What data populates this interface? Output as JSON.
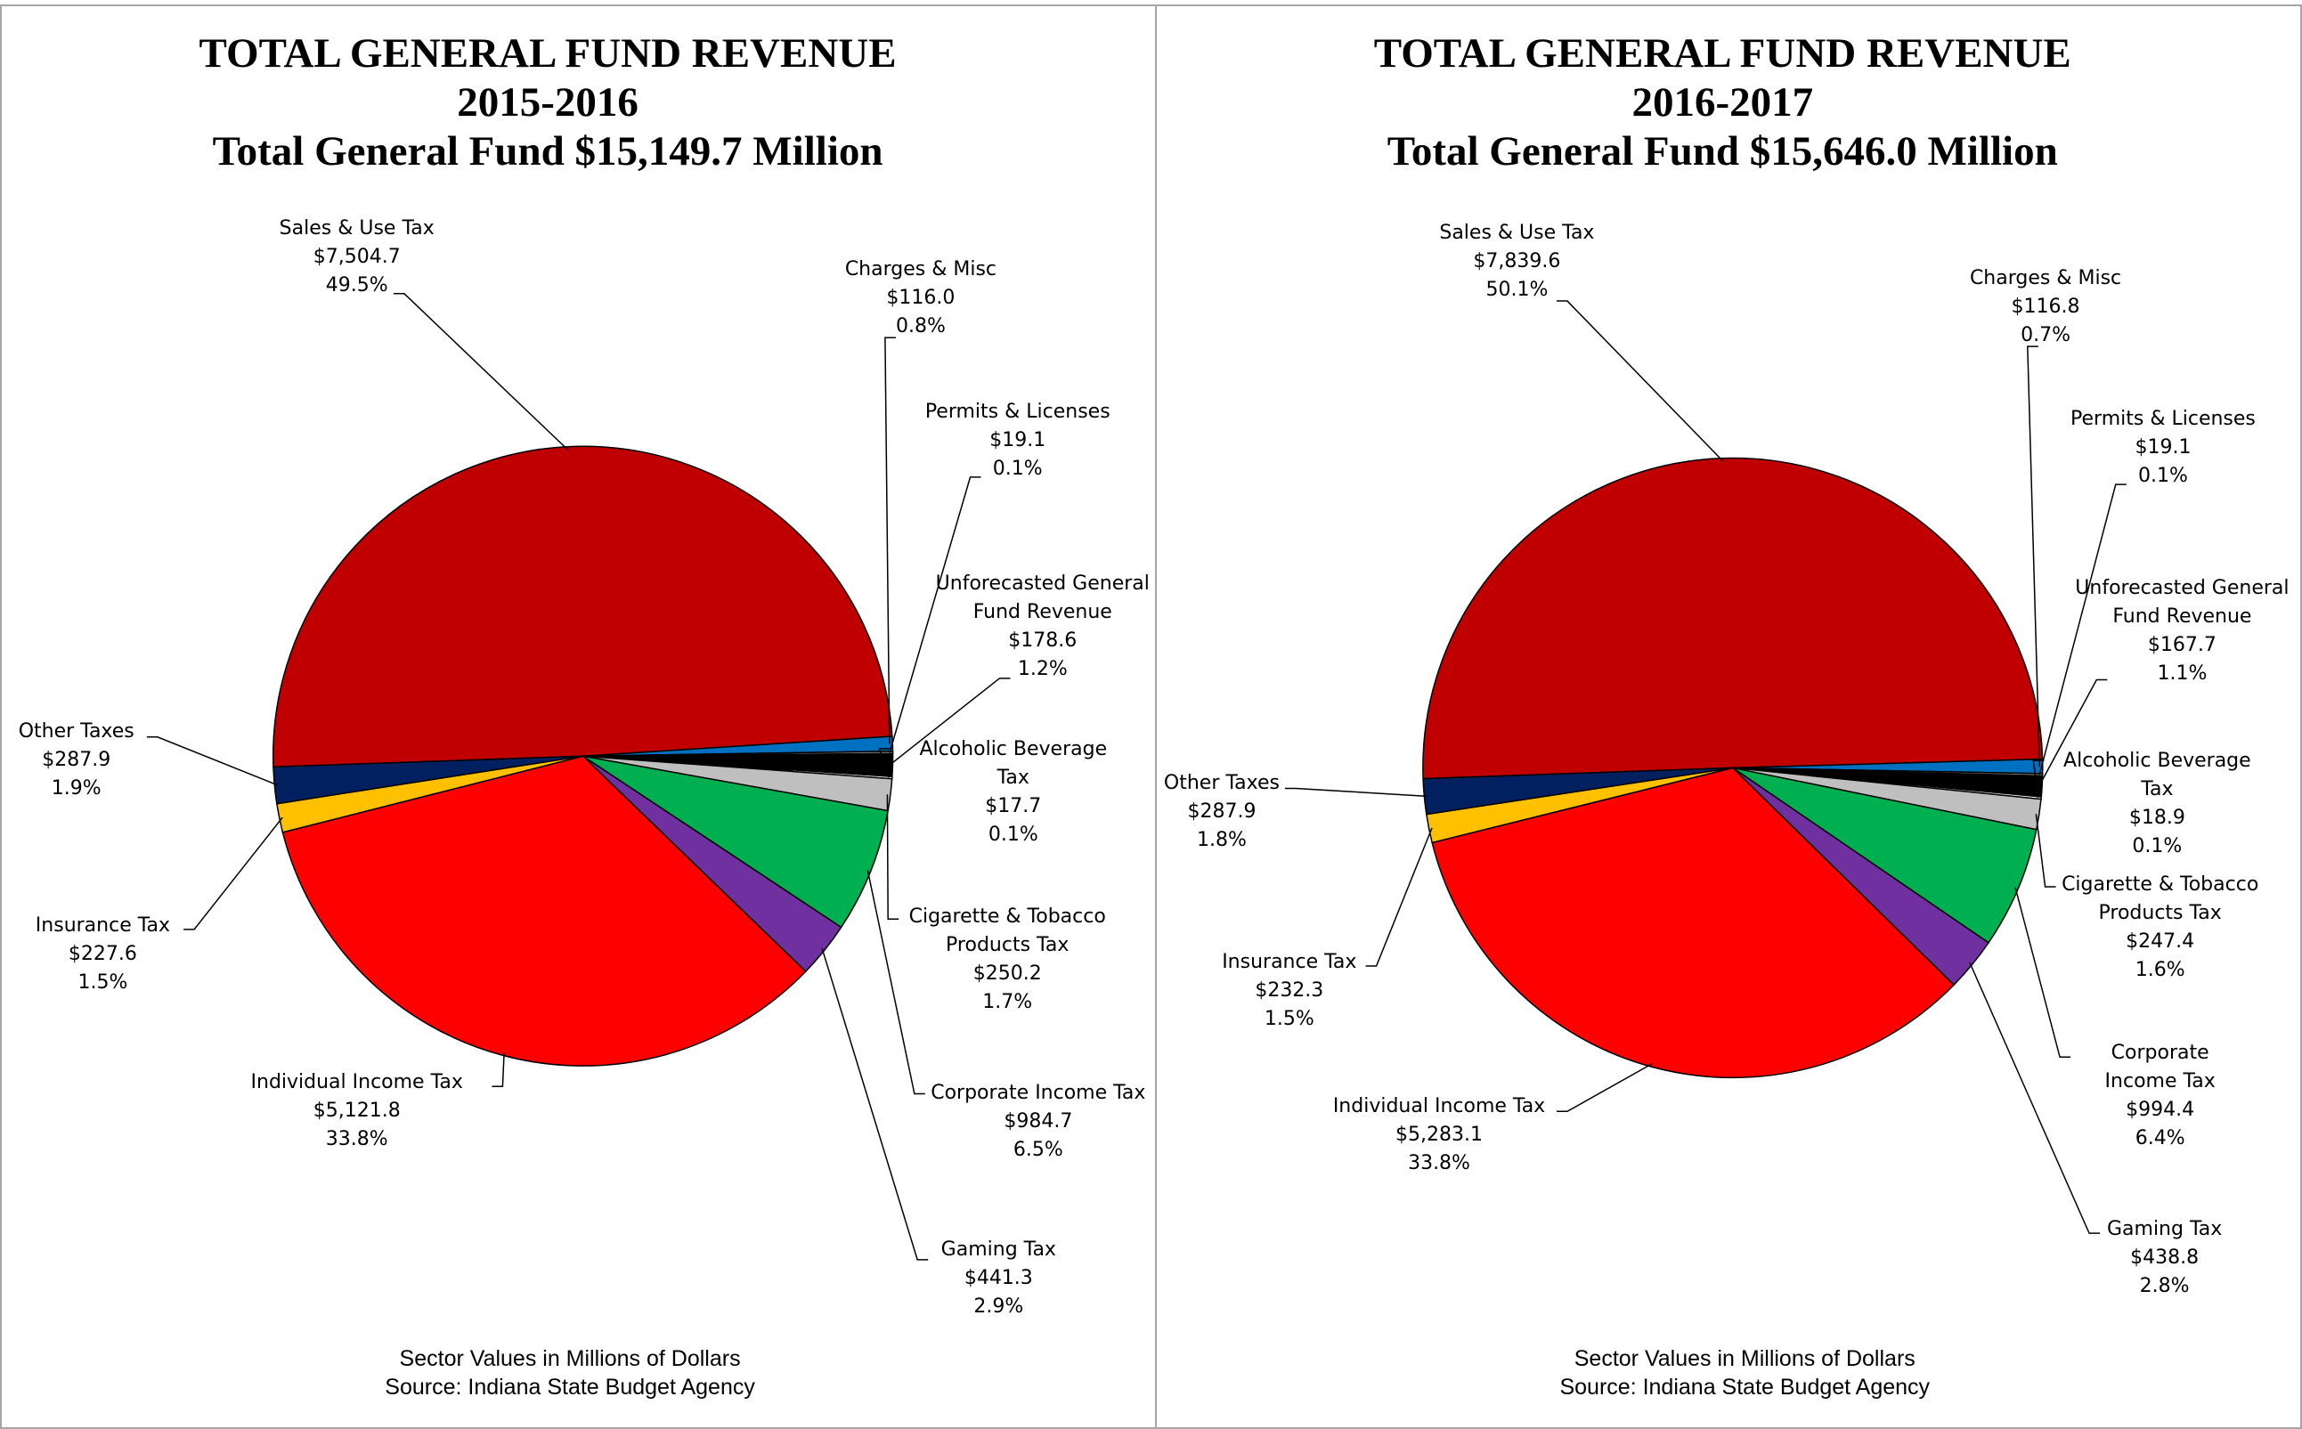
{
  "chart_data": [
    {
      "type": "pie",
      "title": "TOTAL GENERAL FUND REVENUE",
      "subtitle": "2015-2016",
      "total": "Total General Fund  $15,149.7 Million",
      "categories": [
        "Sales & Use Tax",
        "Charges & Misc",
        "Permits & Licenses",
        "Unforecasted General Fund Revenue",
        "Alcoholic Beverage Tax",
        "Cigarette & Tobacco Products Tax",
        "Corporate Income Tax",
        "Gaming Tax",
        "Individual Income Tax",
        "Insurance Tax",
        "Other Taxes"
      ],
      "values": [
        7504.7,
        116.0,
        19.1,
        178.6,
        17.7,
        250.2,
        984.7,
        441.3,
        5121.8,
        227.6,
        287.9
      ],
      "value_labels": [
        "$7,504.7",
        "$116.0",
        "$19.1",
        "$178.6",
        "$17.7",
        "$250.2",
        "$984.7",
        "$441.3",
        "$5,121.8",
        "$227.6",
        "$287.9"
      ],
      "percent_labels": [
        "49.5%",
        "0.8%",
        "0.1%",
        "1.2%",
        "0.1%",
        "1.7%",
        "6.5%",
        "2.9%",
        "33.8%",
        "1.5%",
        "1.9%"
      ],
      "colors": [
        "#c00000",
        "#0070c0",
        "#7f7f7f",
        "#000000",
        "#ffffff",
        "#bfbfbf",
        "#00b050",
        "#7030a0",
        "#ff0000",
        "#ffc000",
        "#002060"
      ],
      "footnote": "Sector Values in Millions of Dollars",
      "source": "Source: Indiana State Budget Agency"
    },
    {
      "type": "pie",
      "title": "TOTAL GENERAL FUND REVENUE",
      "subtitle": "2016-2017",
      "total": "Total General Fund  $15,646.0 Million",
      "categories": [
        "Sales & Use Tax",
        "Charges & Misc",
        "Permits & Licenses",
        "Unforecasted General Fund Revenue",
        "Alcoholic Beverage Tax",
        "Cigarette & Tobacco Products Tax",
        "Corporate Income Tax",
        "Gaming Tax",
        "Individual Income Tax",
        "Insurance Tax",
        "Other Taxes"
      ],
      "values": [
        7839.6,
        116.8,
        19.1,
        167.7,
        18.9,
        247.4,
        994.4,
        438.8,
        5283.1,
        232.3,
        287.9
      ],
      "value_labels": [
        "$7,839.6",
        "$116.8",
        "$19.1",
        "$167.7",
        "$18.9",
        "$247.4",
        "$994.4",
        "$438.8",
        "$5,283.1",
        "$232.3",
        "$287.9"
      ],
      "percent_labels": [
        "50.1%",
        "0.7%",
        "0.1%",
        "1.1%",
        "0.1%",
        "1.6%",
        "6.4%",
        "2.8%",
        "33.8%",
        "1.5%",
        "1.8%"
      ],
      "colors": [
        "#c00000",
        "#0070c0",
        "#7f7f7f",
        "#000000",
        "#ffffff",
        "#bfbfbf",
        "#00b050",
        "#7030a0",
        "#ff0000",
        "#ffc000",
        "#002060"
      ],
      "footnote": "Sector Values in Millions of Dollars",
      "source": "Source: Indiana State Budget Agency"
    }
  ]
}
